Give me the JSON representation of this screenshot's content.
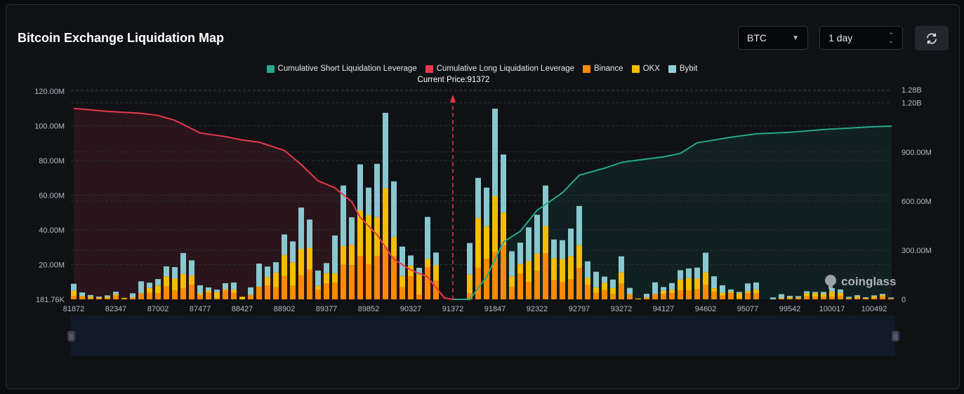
{
  "header": {
    "title": "Bitcoin Exchange Liquidation Map",
    "coin_select": "BTC",
    "range_select": "1 day",
    "refresh_icon": "refresh-icon"
  },
  "watermark": "coinglass",
  "colors": {
    "binance": "#ff8a00",
    "okx": "#f5bd00",
    "bybit": "#8fd2d9",
    "long": "#e8394a",
    "short": "#25a98a"
  },
  "chart_data": {
    "type": "bar",
    "title": "Bitcoin Exchange Liquidation Map",
    "current_price_label": "Current Price:91372",
    "current_price_index": 45,
    "legend": [
      "Cumulative Short Liquidation Leverage",
      "Cumulative Long Liquidation Leverage",
      "Binance",
      "OKX",
      "Bybit"
    ],
    "legend_placement": "top-center",
    "x_tick_labels": [
      "81872",
      "82347",
      "87002",
      "87477",
      "88427",
      "88902",
      "89377",
      "89852",
      "90327",
      "91372",
      "91847",
      "92322",
      "92797",
      "93272",
      "94127",
      "94602",
      "95077",
      "99542",
      "100017",
      "100492"
    ],
    "x_tick_every": 5,
    "y_left": {
      "unit": "M",
      "ticks": [
        "181.76K",
        "20.00M",
        "40.00M",
        "60.00M",
        "80.00M",
        "100.00M",
        "120.00M"
      ],
      "ylim": [
        0,
        120
      ]
    },
    "y_right": {
      "unit": "M",
      "ticks": [
        "0",
        "300.00M",
        "600.00M",
        "900.00M",
        "1.20B",
        "1.28B"
      ],
      "tick_values": [
        0,
        300,
        600,
        900,
        1200,
        1280
      ],
      "ylim": [
        0,
        1280
      ]
    },
    "series_names": [
      "Binance",
      "OKX",
      "Bybit"
    ],
    "bars": [
      [
        2,
        3,
        4
      ],
      [
        1.5,
        0.5,
        2
      ],
      [
        0.8,
        0.7,
        1
      ],
      [
        0.6,
        0.4,
        0.6
      ],
      [
        0.7,
        0.7,
        0.9
      ],
      [
        2.2,
        0.8,
        1.4
      ],
      [
        0.3,
        0.5,
        0
      ],
      [
        1,
        0.2,
        2.3
      ],
      [
        3.5,
        0,
        6.9
      ],
      [
        3.8,
        2.8,
        3
      ],
      [
        3.6,
        4.4,
        3.7
      ],
      [
        7.3,
        5.9,
        5.8
      ],
      [
        5.1,
        7,
        6.5
      ],
      [
        6.5,
        8.2,
        12
      ],
      [
        8.5,
        5.2,
        8.8
      ],
      [
        2.3,
        1.2,
        4.6
      ],
      [
        3.8,
        1.3,
        1.8
      ],
      [
        0.8,
        3.3,
        1.5
      ],
      [
        5,
        0.9,
        3.4
      ],
      [
        3.8,
        1.9,
        4
      ],
      [
        0,
        1.5,
        0
      ],
      [
        2.5,
        0,
        4.4
      ],
      [
        7.3,
        0,
        13.3
      ],
      [
        7.8,
        5.1,
        6
      ],
      [
        7,
        8.4,
        6
      ],
      [
        13.5,
        12.1,
        11.8
      ],
      [
        7.8,
        13.5,
        12.1
      ],
      [
        13.9,
        15.2,
        23.8
      ],
      [
        17.2,
        12.5,
        16.3
      ],
      [
        5.5,
        2.3,
        8.8
      ],
      [
        9,
        6.1,
        5.8
      ],
      [
        9.6,
        5.4,
        21.8
      ],
      [
        19.9,
        10.8,
        34.9
      ],
      [
        19.7,
        11.7,
        15.9
      ],
      [
        25,
        26.1,
        26.7
      ],
      [
        20.2,
        28.3,
        15.9
      ],
      [
        25,
        22.4,
        30.7
      ],
      [
        30,
        34,
        43.5
      ],
      [
        24.9,
        11.2,
        31.9
      ],
      [
        7.1,
        6.3,
        17
      ],
      [
        13.2,
        6.1,
        6
      ],
      [
        2.7,
        11.6,
        3.9
      ],
      [
        18.6,
        4.7,
        24.2
      ],
      [
        10.8,
        8.8,
        7.4
      ],
      [
        0,
        0,
        0
      ],
      [
        0,
        0,
        0
      ],
      [
        0,
        0,
        0
      ],
      [
        3.5,
        10.8,
        18.2
      ],
      [
        18.2,
        28.7,
        23.1
      ],
      [
        23.3,
        18.6,
        22.5
      ],
      [
        27.3,
        32.3,
        50.3
      ],
      [
        31,
        19,
        33.5
      ],
      [
        7.1,
        6.3,
        14.3
      ],
      [
        14.8,
        5.5,
        12.4
      ],
      [
        10.1,
        12.1,
        19.3
      ],
      [
        16.3,
        10.1,
        22.4
      ],
      [
        26.4,
        15.8,
        23.4
      ],
      [
        11,
        12.8,
        10.7
      ],
      [
        10.1,
        13.1,
        10.9
      ],
      [
        11.4,
        13.5,
        15.9
      ],
      [
        17.9,
        13.3,
        22.6
      ],
      [
        8.2,
        4.3,
        9.4
      ],
      [
        3.8,
        3.2,
        8.9
      ],
      [
        5.4,
        4.2,
        3.5
      ],
      [
        3,
        3.5,
        4.9
      ],
      [
        9,
        6.5,
        9.3
      ],
      [
        2.7,
        0.4,
        3.5
      ],
      [
        0,
        0.5,
        0
      ],
      [
        1,
        0.2,
        2
      ],
      [
        3,
        0,
        6.8
      ],
      [
        3.1,
        1.9,
        2.1
      ],
      [
        3.6,
        2,
        3.8
      ],
      [
        5.1,
        6.3,
        5.4
      ],
      [
        5.1,
        7.3,
        5.4
      ],
      [
        5.9,
        6.2,
        6.2
      ],
      [
        8.5,
        7.1,
        11.3
      ],
      [
        4.4,
        2,
        6.9
      ],
      [
        2.2,
        1.6,
        4.3
      ],
      [
        3.6,
        0.8,
        1.3
      ],
      [
        0.8,
        2.7,
        0.8
      ],
      [
        3.5,
        1.2,
        4.5
      ],
      [
        3.5,
        2.2,
        4
      ],
      [
        0,
        0,
        0
      ],
      [
        0,
        0,
        1.1
      ],
      [
        0.4,
        0.4,
        2.2
      ],
      [
        0.5,
        0.7,
        0.8
      ],
      [
        0.6,
        0.5,
        0.8
      ],
      [
        1.7,
        1.8,
        1.2
      ],
      [
        1.5,
        2,
        0.8
      ],
      [
        1.3,
        1.9,
        1.1
      ],
      [
        1.5,
        3,
        2
      ],
      [
        2,
        1.7,
        2
      ],
      [
        0.5,
        0.4,
        0.6
      ],
      [
        0.8,
        0.8,
        0.8
      ],
      [
        0.4,
        0.4,
        0.4
      ],
      [
        0.8,
        0.8,
        0.7
      ],
      [
        1.5,
        1,
        0.7
      ],
      [
        0.5,
        0.2,
        0.4
      ]
    ],
    "cumulative_long": [
      [
        0,
        1166
      ],
      [
        4,
        1148
      ],
      [
        8,
        1136
      ],
      [
        10,
        1123
      ],
      [
        12,
        1093
      ],
      [
        15,
        1016
      ],
      [
        18,
        994
      ],
      [
        20,
        973
      ],
      [
        22,
        960
      ],
      [
        25,
        909
      ],
      [
        27,
        823
      ],
      [
        29,
        724
      ],
      [
        31,
        681
      ],
      [
        33,
        596
      ],
      [
        34,
        501
      ],
      [
        36,
        394
      ],
      [
        38,
        244
      ],
      [
        40,
        180
      ],
      [
        42,
        137
      ],
      [
        44,
        9
      ],
      [
        45,
        0
      ]
    ],
    "cumulative_short": [
      [
        45,
        0
      ],
      [
        47,
        0
      ],
      [
        49,
        137
      ],
      [
        51,
        351
      ],
      [
        53,
        416
      ],
      [
        55,
        544
      ],
      [
        58,
        651
      ],
      [
        60,
        758
      ],
      [
        63,
        801
      ],
      [
        65,
        836
      ],
      [
        66,
        844
      ],
      [
        70,
        870
      ],
      [
        72,
        891
      ],
      [
        74,
        956
      ],
      [
        78,
        990
      ],
      [
        81,
        1011
      ],
      [
        85,
        1020
      ],
      [
        89,
        1037
      ],
      [
        95,
        1054
      ],
      [
        97,
        1058
      ]
    ]
  }
}
